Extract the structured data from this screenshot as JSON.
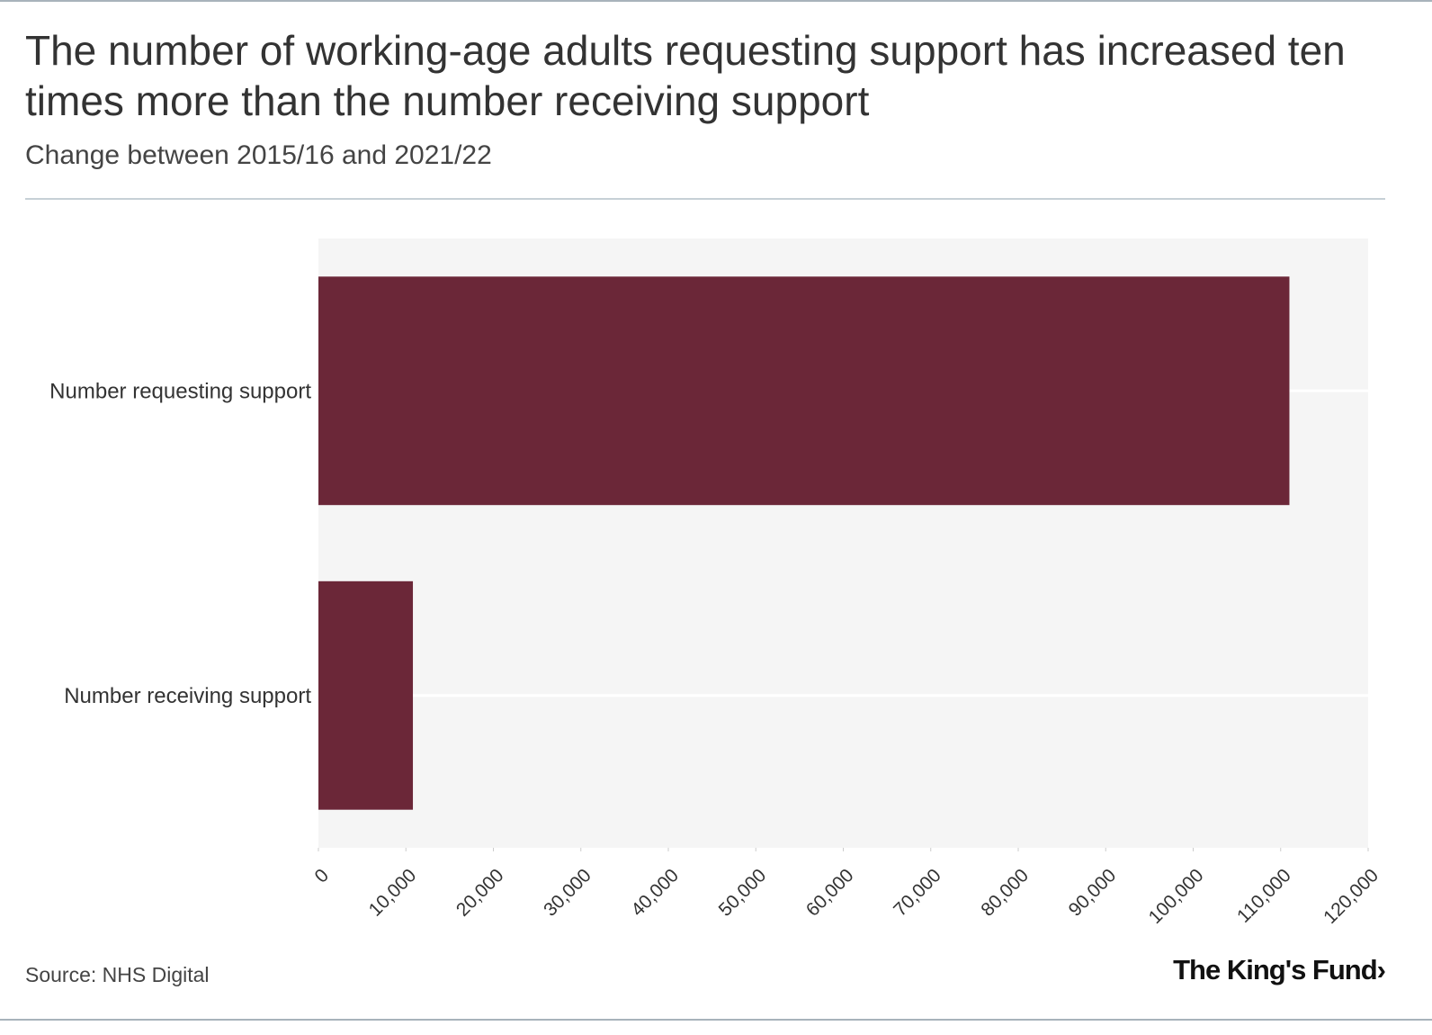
{
  "title": "The number of working-age adults requesting support has increased ten times more than the number receiving support",
  "subtitle": "Change between 2015/16 and 2021/22",
  "source": "Source: NHS Digital",
  "logo": {
    "text": "The King's Fund",
    "mark": "›"
  },
  "colors": {
    "bar": "#6b2738",
    "plot_background": "#f5f5f5",
    "gridline": "#ffffff",
    "text": "#333333",
    "rule": "#c6d0d6"
  },
  "chart_data": {
    "type": "bar",
    "orientation": "horizontal",
    "categories": [
      "Number requesting support",
      "Number receiving support"
    ],
    "values": [
      111000,
      10800
    ],
    "xlim": [
      0,
      120000
    ],
    "xticks": [
      0,
      10000,
      20000,
      30000,
      40000,
      50000,
      60000,
      70000,
      80000,
      90000,
      100000,
      110000,
      120000
    ],
    "xtick_labels": [
      "0",
      "10,000",
      "20,000",
      "30,000",
      "40,000",
      "50,000",
      "60,000",
      "70,000",
      "80,000",
      "90,000",
      "100,000",
      "110,000",
      "120,000"
    ],
    "xlabel": "",
    "ylabel": "",
    "grid": true,
    "legend": "none"
  }
}
